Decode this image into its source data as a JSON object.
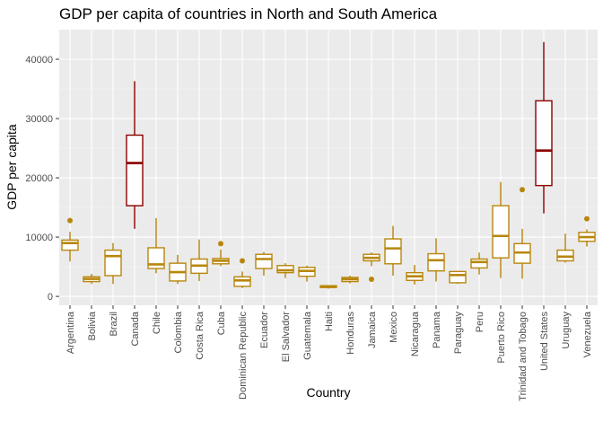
{
  "chart_data": {
    "type": "boxplot",
    "title": "GDP per capita of countries in North and South America",
    "xlabel": "Country",
    "ylabel": "GDP per capita",
    "ylim": [
      -1500,
      45000
    ],
    "yticks": [
      0,
      10000,
      20000,
      30000,
      40000
    ],
    "ytick_labels": [
      "0",
      "10000",
      "20000",
      "30000",
      "40000"
    ],
    "grid": true,
    "legend": "none",
    "colors": {
      "default_box": "#b8860b",
      "highlight_box": "#8b0000",
      "panel_background": "#ebebeb",
      "grid_major": "#ffffff"
    },
    "categories": [
      "Argentina",
      "Bolivia",
      "Brazil",
      "Canada",
      "Chile",
      "Colombia",
      "Costa Rica",
      "Cuba",
      "Dominican Republic",
      "Ecuador",
      "El Salvador",
      "Guatemala",
      "Haiti",
      "Honduras",
      "Jamaica",
      "Mexico",
      "Nicaragua",
      "Panama",
      "Paraguay",
      "Peru",
      "Puerto Rico",
      "Trinidad and Tobago",
      "United States",
      "Uruguay",
      "Venezuela"
    ],
    "boxes": [
      {
        "category": "Argentina",
        "min": 5900,
        "q1": 7800,
        "median": 9000,
        "q3": 9500,
        "max": 10900,
        "outliers": [
          12800
        ],
        "highlight": false
      },
      {
        "category": "Bolivia",
        "min": 2100,
        "q1": 2500,
        "median": 2950,
        "q3": 3300,
        "max": 3800,
        "outliers": [],
        "highlight": false
      },
      {
        "category": "Brazil",
        "min": 2100,
        "q1": 3500,
        "median": 6800,
        "q3": 7800,
        "max": 9000,
        "outliers": [],
        "highlight": false
      },
      {
        "category": "Canada",
        "min": 11400,
        "q1": 15300,
        "median": 22500,
        "q3": 27200,
        "max": 36300,
        "outliers": [],
        "highlight": true
      },
      {
        "category": "Chile",
        "min": 3900,
        "q1": 4700,
        "median": 5400,
        "q3": 8200,
        "max": 13200,
        "outliers": [],
        "highlight": false
      },
      {
        "category": "Colombia",
        "min": 2100,
        "q1": 2600,
        "median": 4100,
        "q3": 5600,
        "max": 7000,
        "outliers": [],
        "highlight": false
      },
      {
        "category": "Costa Rica",
        "min": 2600,
        "q1": 3900,
        "median": 5200,
        "q3": 6300,
        "max": 9600,
        "outliers": [],
        "highlight": false
      },
      {
        "category": "Cuba",
        "min": 5100,
        "q1": 5500,
        "median": 6000,
        "q3": 6400,
        "max": 7900,
        "outliers": [
          8900
        ],
        "highlight": false
      },
      {
        "category": "Dominican Republic",
        "min": 1400,
        "q1": 1700,
        "median": 2700,
        "q3": 3300,
        "max": 4200,
        "outliers": [
          6000
        ],
        "highlight": false
      },
      {
        "category": "Ecuador",
        "min": 3500,
        "q1": 4700,
        "median": 6300,
        "q3": 7100,
        "max": 7500,
        "outliers": [],
        "highlight": false
      },
      {
        "category": "El Salvador",
        "min": 3100,
        "q1": 4000,
        "median": 4400,
        "q3": 5200,
        "max": 5600,
        "outliers": [],
        "highlight": false
      },
      {
        "category": "Guatemala",
        "min": 2500,
        "q1": 3400,
        "median": 4300,
        "q3": 4900,
        "max": 5200,
        "outliers": [],
        "highlight": false
      },
      {
        "category": "Haiti",
        "min": 1300,
        "q1": 1500,
        "median": 1650,
        "q3": 1800,
        "max": 1900,
        "outliers": [],
        "highlight": false
      },
      {
        "category": "Honduras",
        "min": 2200,
        "q1": 2500,
        "median": 2900,
        "q3": 3200,
        "max": 3500,
        "outliers": [],
        "highlight": false
      },
      {
        "category": "Jamaica",
        "min": 5100,
        "q1": 6000,
        "median": 6500,
        "q3": 7100,
        "max": 7400,
        "outliers": [
          2900
        ],
        "highlight": false
      },
      {
        "category": "Mexico",
        "min": 3500,
        "q1": 5500,
        "median": 8100,
        "q3": 9700,
        "max": 11900,
        "outliers": [],
        "highlight": false
      },
      {
        "category": "Nicaragua",
        "min": 2000,
        "q1": 2700,
        "median": 3400,
        "q3": 4000,
        "max": 5300,
        "outliers": [],
        "highlight": false
      },
      {
        "category": "Panama",
        "min": 2500,
        "q1": 4300,
        "median": 6100,
        "q3": 7200,
        "max": 9800,
        "outliers": [],
        "highlight": false
      },
      {
        "category": "Paraguay",
        "min": 2100,
        "q1": 2300,
        "median": 3600,
        "q3": 4200,
        "max": 4300,
        "outliers": [],
        "highlight": false
      },
      {
        "category": "Peru",
        "min": 3700,
        "q1": 4800,
        "median": 5800,
        "q3": 6300,
        "max": 7400,
        "outliers": [],
        "highlight": false
      },
      {
        "category": "Puerto Rico",
        "min": 3100,
        "q1": 6500,
        "median": 10200,
        "q3": 15300,
        "max": 19300,
        "outliers": [],
        "highlight": false
      },
      {
        "category": "Trinidad and Tobago",
        "min": 3000,
        "q1": 5600,
        "median": 7400,
        "q3": 8900,
        "max": 11400,
        "outliers": [
          18000
        ],
        "highlight": false
      },
      {
        "category": "United States",
        "min": 14000,
        "q1": 18700,
        "median": 24600,
        "q3": 33000,
        "max": 42900,
        "outliers": [],
        "highlight": true
      },
      {
        "category": "Uruguay",
        "min": 5700,
        "q1": 6000,
        "median": 6700,
        "q3": 7800,
        "max": 10600,
        "outliers": [],
        "highlight": false
      },
      {
        "category": "Venezuela",
        "min": 8400,
        "q1": 9300,
        "median": 10000,
        "q3": 10800,
        "max": 11300,
        "outliers": [
          13100
        ],
        "highlight": false
      }
    ]
  }
}
